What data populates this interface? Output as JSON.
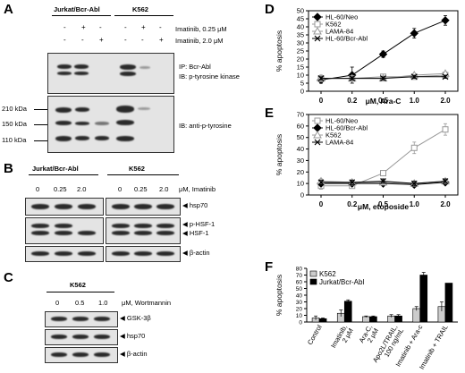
{
  "panel_labels": {
    "a": "A",
    "b": "B",
    "c": "C",
    "d": "D",
    "e": "E",
    "f": "F"
  },
  "panel_a": {
    "group1": "Jurkat/Bcr-Abl",
    "group2": "K562",
    "row1_signs": [
      "-",
      "+",
      "-",
      "-",
      "+",
      "-"
    ],
    "row2_signs": [
      "-",
      "-",
      "+",
      "-",
      "-",
      "+"
    ],
    "row1_label": "Imatinib, 0.25 μM",
    "row2_label": "Imatinib, 2.0 μM",
    "blot1_label1": "IP: Bcr-Abl",
    "blot1_label2": "IB: p-tyrosine kinase",
    "blot2_label": "IB: anti-p-tyrosine",
    "mw": [
      "210 kDa",
      "150 kDa",
      "110 kDa"
    ]
  },
  "panel_b": {
    "group1": "Jurkat/Bcr-Abl",
    "group2": "K562",
    "doses1": [
      "0",
      "0.25",
      "2.0"
    ],
    "doses2": [
      "0",
      "0.25",
      "2.0"
    ],
    "unit": "μM, Imatinib",
    "hsp70": "hsp70",
    "phsf": "p-HSF-1",
    "hsf": "HSF-1",
    "actin": "β-actin"
  },
  "panel_c": {
    "group": "K562",
    "doses": [
      "0",
      "0.5",
      "1.0"
    ],
    "unit": "μM, Wortmannin",
    "gsk": "GSK-3β",
    "hsp70": "hsp70",
    "actin": "β-actin"
  },
  "colors": {
    "black": "#000000",
    "gray": "#999999",
    "light_gray": "#cccccc"
  },
  "chart_data": [
    {
      "id": "D",
      "type": "line",
      "x": [
        "0",
        "0.2",
        "0.5",
        "1.0",
        "2.0"
      ],
      "xlabel": "μM, Ara-C",
      "ylabel": "% apoptosis",
      "ylim": [
        0,
        50
      ],
      "yticks": [
        0,
        5,
        10,
        15,
        20,
        25,
        30,
        35,
        40,
        45,
        50
      ],
      "legend": "top-left",
      "series": [
        {
          "name": "HL-60/Neo",
          "values": [
            7,
            10,
            23,
            36,
            44
          ],
          "errors": [
            2,
            5,
            2,
            3,
            3
          ],
          "color": "#000000",
          "marker": "diamond"
        },
        {
          "name": "K562",
          "values": [
            8,
            8,
            9,
            9,
            10
          ],
          "errors": [
            2,
            1,
            1,
            1,
            1
          ],
          "color": "#999999",
          "marker": "square"
        },
        {
          "name": "LAMA-84",
          "values": [
            8,
            8,
            8,
            10,
            11
          ],
          "errors": [
            2,
            1,
            1,
            1,
            1
          ],
          "color": "#999999",
          "marker": "triangle"
        },
        {
          "name": "HL-60/Bcr-Abl",
          "values": [
            8,
            8,
            8,
            9,
            9
          ],
          "errors": [
            1,
            1,
            1,
            1,
            1
          ],
          "color": "#000000",
          "marker": "x"
        }
      ]
    },
    {
      "id": "E",
      "type": "line",
      "x": [
        "0",
        "0.2",
        "0.5",
        "1.0",
        "2.0"
      ],
      "xlabel": "μM, etoposide",
      "ylabel": "% apoptosis",
      "ylim": [
        0,
        70
      ],
      "yticks": [
        0,
        10,
        20,
        30,
        40,
        50,
        60,
        70
      ],
      "legend": "top-left",
      "series": [
        {
          "name": "HL-60/Neo",
          "values": [
            8,
            8,
            19,
            41,
            57
          ],
          "errors": [
            3,
            2,
            2,
            5,
            5
          ],
          "color": "#999999",
          "marker": "square"
        },
        {
          "name": "HL-60/Bcr-Abl",
          "values": [
            10,
            10,
            10,
            9,
            11
          ],
          "errors": [
            2,
            2,
            2,
            2,
            2
          ],
          "color": "#000000",
          "marker": "diamond"
        },
        {
          "name": "K562",
          "values": [
            12,
            11,
            11,
            10,
            12
          ],
          "errors": [
            2,
            2,
            2,
            2,
            2
          ],
          "color": "#999999",
          "marker": "triangle"
        },
        {
          "name": "LAMA-84",
          "values": [
            11,
            11,
            12,
            10,
            12
          ],
          "errors": [
            2,
            2,
            2,
            2,
            2
          ],
          "color": "#000000",
          "marker": "x"
        }
      ]
    },
    {
      "id": "F",
      "type": "bar",
      "categories": [
        "Control",
        "Imatinib, 2 μM",
        "Ara-C, 2 μM",
        "Apo2L/TRAIL, 100 ng/mL",
        "Imatinib + Ara-c",
        "Imatinib + TRAIL"
      ],
      "ylabel": "% apoptosis",
      "ylim": [
        0,
        80
      ],
      "yticks": [
        0,
        10,
        20,
        30,
        40,
        50,
        60,
        70,
        80
      ],
      "legend": "top-left",
      "series": [
        {
          "name": "K562",
          "values": [
            6,
            13,
            8,
            9,
            20,
            23
          ],
          "errors": [
            3,
            5,
            1,
            2,
            3,
            7
          ],
          "color": "#cccccc"
        },
        {
          "name": "Jurkat/Bcr-Abl",
          "values": [
            5,
            31,
            8,
            9,
            70,
            58
          ],
          "errors": [
            1,
            2,
            1,
            2,
            4,
            0
          ],
          "color": "#000000"
        }
      ]
    }
  ]
}
